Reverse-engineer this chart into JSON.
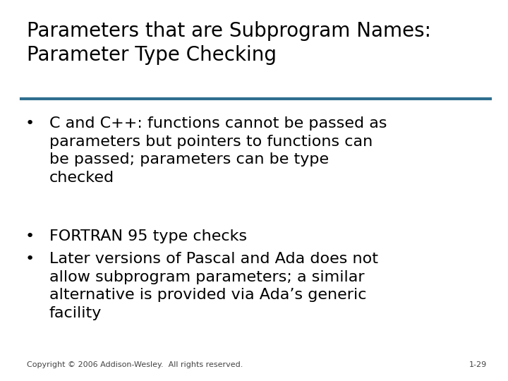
{
  "title_line1": "Parameters that are Subprogram Names:",
  "title_line2": "Parameter Type Checking",
  "bg_color": "#FFFFFF",
  "title_color": "#000000",
  "rule_color": "#2E6E8E",
  "bullet_color": "#000000",
  "body_color": "#000000",
  "footer_left": "Copyright © 2006 Addison-Wesley.  All rights reserved.",
  "footer_right": "1-29",
  "bullets": [
    "C and C++: functions cannot be passed as\nparameters but pointers to functions can\nbe passed; parameters can be type\nchecked",
    "FORTRAN 95 type checks",
    "Later versions of Pascal and Ada does not\nallow subprogram parameters; a similar\nalternative is provided via Ada’s generic\nfacility"
  ],
  "title_fontsize": 20,
  "body_fontsize": 16,
  "footer_fontsize": 8,
  "bullet_symbol": "•"
}
